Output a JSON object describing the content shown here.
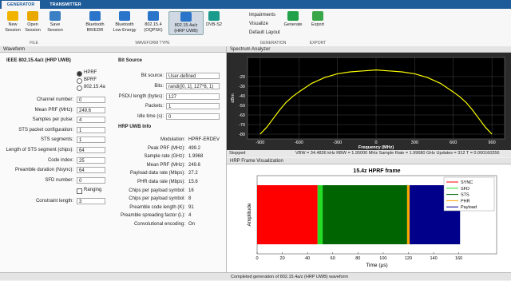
{
  "tabs": [
    "GENERATOR",
    "TRANSMITTER"
  ],
  "toolstrip": {
    "file": {
      "buttons": [
        "New Session",
        "Open Session",
        "Save Session"
      ],
      "label": "FILE"
    },
    "waveform_type": {
      "buttons": [
        "Bluetooth BR/EDR",
        "Bluetooth Low Energy",
        "802.15.4 (OQPSK)",
        "802.15.4a/z (HRP UWB)",
        "DVB-S2"
      ],
      "label": "WAVEFORM TYPE"
    },
    "generation": {
      "items": [
        "Impairments",
        "Visualize",
        "Default Layout"
      ],
      "button": "Generate",
      "label": "GENERATION"
    },
    "export": {
      "button": "Export",
      "label": "EXPORT"
    }
  },
  "waveform_panel": {
    "title": "Waveform",
    "section": "IEEE 802.15.4a/z (HRP UWB)",
    "radios": [
      "HPRF",
      "BPRF",
      "802.15.4a"
    ],
    "fields": [
      {
        "label": "Channel number:",
        "value": "0"
      },
      {
        "label": "Mean PRF (MHz):",
        "value": "249.6"
      },
      {
        "label": "Samples per pulse:",
        "value": "4"
      },
      {
        "label": "STS packet configuration:",
        "value": "1"
      },
      {
        "label": "STS segments:",
        "value": "1"
      },
      {
        "label": "Length of STS segment (chips):",
        "value": "64"
      },
      {
        "label": "Code index:",
        "value": "25"
      },
      {
        "label": "Preamble duration (Nsync):",
        "value": "64"
      },
      {
        "label": "SFD number:",
        "value": "0"
      }
    ],
    "ranging": "Ranging",
    "constraint": {
      "label": "Constraint length:",
      "value": "3"
    }
  },
  "bit_source": {
    "title": "Bit Source",
    "fields": [
      {
        "label": "Bit source:",
        "value": "User-defined"
      },
      {
        "label": "Bits:",
        "value": "randi([0, 1], 127*8, 1)"
      },
      {
        "label": "PSDU length (bytes):",
        "value": "127"
      },
      {
        "label": "Packets:",
        "value": "1"
      },
      {
        "label": "Idle time (s):",
        "value": "0"
      }
    ]
  },
  "info": {
    "title": "HRP UWB Info",
    "rows": [
      {
        "label": "Modulation:",
        "value": "HPRF-ERDEV"
      },
      {
        "label": "Peak PRF (MHz):",
        "value": "499.2"
      },
      {
        "label": "Sample rate (GHz):",
        "value": "1.9968"
      },
      {
        "label": "Mean PRF (MHz):",
        "value": "249.6"
      },
      {
        "label": "Payload data rate (Mbps):",
        "value": "27.2"
      },
      {
        "label": "PHR data rate (Mbps):",
        "value": "15.6"
      },
      {
        "label": "Chips per payload symbol:",
        "value": "16"
      },
      {
        "label": "Chips per payload symbol:",
        "value": "8"
      },
      {
        "label": "Preamble code length (K):",
        "value": "91"
      },
      {
        "label": "Preamble spreading factor (L):",
        "value": "4"
      },
      {
        "label": "Convolutional encoding:",
        "value": "On"
      }
    ]
  },
  "spectrum_status": {
    "state": "Stopped",
    "readout": "VBW = 34.4836 kHz  RBW = 1.95000 MHz  Sample Rate = 1.99680 GHz  Updates = 312  T = 0.000160256"
  },
  "frame_panel_title": "HRP Frame Visualization",
  "status_bar": "Completed generation of 802.15.4a/z (HRP UWB) waveform",
  "chart_data": [
    {
      "type": "line",
      "title": "Spectrum Analyzer",
      "xlabel": "Frequency (MHz)",
      "ylabel": "dBm",
      "color": "#ffff00",
      "x": [
        -900,
        -850,
        -800,
        -750,
        -700,
        -650,
        -600,
        -500,
        -400,
        -300,
        -200,
        -100,
        0,
        100,
        200,
        300,
        400,
        500,
        600,
        650,
        700,
        750,
        800,
        850,
        900
      ],
      "values": [
        -80,
        -73,
        -64,
        -55,
        -47,
        -41,
        -36,
        -27,
        -21,
        -17,
        -15,
        -14,
        -13,
        -14,
        -15,
        -17,
        -21,
        -27,
        -36,
        -41,
        -47,
        -55,
        -64,
        -73,
        -80
      ],
      "xlim": [
        -998.4,
        998.4
      ],
      "ylim": [
        -85,
        0
      ],
      "xticks": [
        -900,
        -600,
        -300,
        0,
        300,
        600,
        900
      ],
      "yticks": [
        -80,
        -70,
        -60,
        -50,
        -40,
        -30,
        -20
      ],
      "grid": true
    },
    {
      "type": "timeline",
      "title": "15.4z HPRF frame",
      "xlabel": "Time (μs)",
      "ylabel": "Amplitude",
      "xlim": [
        0,
        190
      ],
      "xticks": [
        0,
        20,
        40,
        60,
        80,
        100,
        120,
        140,
        160
      ],
      "series": [
        {
          "name": "SYNC",
          "color": "#ff0000",
          "x": [
            0,
            48
          ]
        },
        {
          "name": "SFD",
          "color": "#22dd22",
          "x": [
            48,
            52
          ]
        },
        {
          "name": "STS",
          "color": "#006400",
          "x": [
            52,
            119
          ]
        },
        {
          "name": "PHR",
          "color": "#ffa500",
          "x": [
            119,
            121
          ]
        },
        {
          "name": "Payload",
          "color": "#00008b",
          "x": [
            121,
            161
          ]
        }
      ]
    }
  ]
}
